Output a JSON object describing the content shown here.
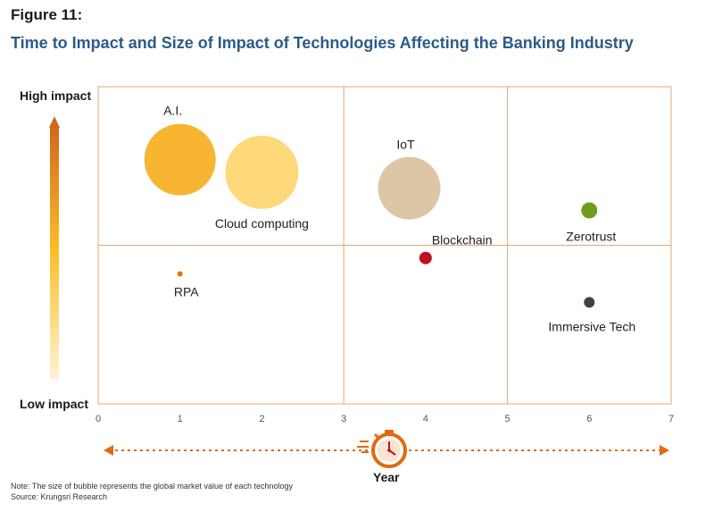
{
  "figure_label": "Figure 11:",
  "title": "Time to Impact and Size of Impact of Technologies Affecting the Banking Industry",
  "y_high_label": "High impact",
  "y_low_label": "Low impact",
  "x_axis_label": "Year",
  "note": "Note: The size of bubble represents the global market value of each technology",
  "source": "Source: Krungsri Research",
  "colors": {
    "frame": "#e0a878",
    "arrow": "#e06a10",
    "title": "#2a5b8a"
  },
  "chart_data": {
    "type": "scatter",
    "subtype": "bubble",
    "xlim": [
      0,
      7
    ],
    "x_ticks": [
      "0",
      "1",
      "2",
      "3",
      "4",
      "5",
      "6",
      "7"
    ],
    "y_range": [
      "Low impact",
      "High impact"
    ],
    "grid": {
      "vertical_at": [
        3,
        5
      ],
      "horizontal_at": 0.5
    },
    "size_meaning": "global market value",
    "series": [
      {
        "name": "A.I.",
        "x": 1.0,
        "y": 0.77,
        "size": 40,
        "color": "#f7b531"
      },
      {
        "name": "Cloud computing",
        "x": 2.0,
        "y": 0.73,
        "size": 41,
        "color": "#fdd97c"
      },
      {
        "name": "IoT",
        "x": 3.8,
        "y": 0.68,
        "size": 35,
        "color": "#dcc6a4"
      },
      {
        "name": "Blockchain",
        "x": 4.0,
        "y": 0.46,
        "size": 7,
        "color": "#c00f1e"
      },
      {
        "name": "Zerotrust",
        "x": 6.0,
        "y": 0.61,
        "size": 9,
        "color": "#6e9f1c"
      },
      {
        "name": "RPA",
        "x": 1.0,
        "y": 0.41,
        "size": 3,
        "color": "#f0700f"
      },
      {
        "name": "Immersive Tech",
        "x": 6.0,
        "y": 0.32,
        "size": 6,
        "color": "#4a3f3f"
      }
    ]
  }
}
